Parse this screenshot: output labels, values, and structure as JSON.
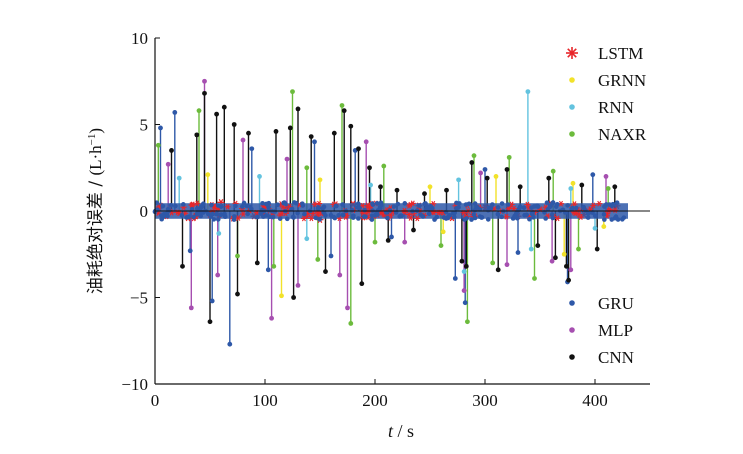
{
  "chart_data": {
    "type": "scatter",
    "title": "",
    "xlabel_italic": "t",
    "xlabel_unit": " / s",
    "ylabel_cn": "油耗绝对误差 / ",
    "ylabel_unit": "(L·h",
    "ylabel_sup": "−1",
    "ylabel_close": ")",
    "xlim": [
      0,
      450
    ],
    "ylim": [
      -10,
      10
    ],
    "x_ticks": [
      0,
      100,
      200,
      300,
      400
    ],
    "y_ticks": [
      10,
      5,
      0,
      -5,
      -10
    ],
    "y_tick_labels": [
      "10",
      "5",
      "0",
      "−5",
      "−10"
    ],
    "grid": false,
    "style": "stem",
    "x_range_of_samples": [
      0,
      430
    ],
    "series": [
      {
        "name": "LSTM",
        "color": "#e8262a",
        "marker": "asterisk",
        "points": [
          [
            5,
            0.3
          ],
          [
            30,
            -0.4
          ],
          [
            60,
            0.5
          ],
          [
            90,
            -0.3
          ],
          [
            120,
            0.2
          ],
          [
            150,
            -0.5
          ],
          [
            180,
            0.4
          ],
          [
            210,
            -0.2
          ],
          [
            240,
            0.3
          ],
          [
            270,
            -0.4
          ],
          [
            300,
            0.2
          ],
          [
            330,
            -0.3
          ],
          [
            360,
            0.4
          ],
          [
            390,
            -0.2
          ],
          [
            420,
            0.3
          ]
        ]
      },
      {
        "name": "GRNN",
        "color": "#f2e22a",
        "marker": "dot",
        "points": [
          [
            48,
            2.1
          ],
          [
            115,
            -4.9
          ],
          [
            150,
            1.8
          ],
          [
            250,
            1.4
          ],
          [
            262,
            -1.2
          ],
          [
            310,
            2.0
          ],
          [
            372,
            -2.5
          ],
          [
            380,
            1.6
          ],
          [
            408,
            -0.9
          ]
        ]
      },
      {
        "name": "RNN",
        "color": "#63c3df",
        "marker": "dot",
        "points": [
          [
            22,
            1.9
          ],
          [
            58,
            -1.3
          ],
          [
            95,
            2.0
          ],
          [
            138,
            -1.6
          ],
          [
            196,
            1.5
          ],
          [
            276,
            1.8
          ],
          [
            281,
            -3.5
          ],
          [
            339,
            6.9
          ],
          [
            342,
            -2.2
          ],
          [
            378,
            1.3
          ],
          [
            400,
            -1.0
          ]
        ]
      },
      {
        "name": "NAXR",
        "color": "#6cbb3c",
        "marker": "dot",
        "points": [
          [
            3,
            3.8
          ],
          [
            40,
            5.8
          ],
          [
            75,
            -2.6
          ],
          [
            108,
            -3.2
          ],
          [
            125,
            6.9
          ],
          [
            138,
            2.5
          ],
          [
            148,
            -2.8
          ],
          [
            170,
            6.1
          ],
          [
            178,
            -6.5
          ],
          [
            200,
            -1.8
          ],
          [
            208,
            2.6
          ],
          [
            260,
            -2.0
          ],
          [
            284,
            -6.4
          ],
          [
            290,
            3.2
          ],
          [
            307,
            -3.0
          ],
          [
            322,
            3.1
          ],
          [
            345,
            -3.9
          ],
          [
            362,
            2.3
          ],
          [
            385,
            -2.2
          ],
          [
            412,
            1.3
          ]
        ]
      },
      {
        "name": "GRU",
        "color": "#2e58a8",
        "marker": "dot",
        "points": [
          [
            5,
            4.8
          ],
          [
            18,
            5.7
          ],
          [
            32,
            -2.3
          ],
          [
            52,
            -5.2
          ],
          [
            68,
            -7.7
          ],
          [
            88,
            3.6
          ],
          [
            103,
            -3.4
          ],
          [
            145,
            4.0
          ],
          [
            160,
            -2.6
          ],
          [
            182,
            3.5
          ],
          [
            215,
            -1.5
          ],
          [
            273,
            -3.9
          ],
          [
            282,
            -5.3
          ],
          [
            300,
            2.4
          ],
          [
            330,
            -2.4
          ],
          [
            375,
            -4.1
          ],
          [
            398,
            2.1
          ]
        ]
      },
      {
        "name": "MLP",
        "color": "#a64fb0",
        "marker": "dot",
        "points": [
          [
            12,
            2.7
          ],
          [
            33,
            -5.6
          ],
          [
            45,
            7.5
          ],
          [
            57,
            -3.7
          ],
          [
            80,
            4.1
          ],
          [
            106,
            -6.2
          ],
          [
            120,
            3.0
          ],
          [
            130,
            -4.3
          ],
          [
            168,
            -3.7
          ],
          [
            175,
            -5.6
          ],
          [
            192,
            4.0
          ],
          [
            227,
            -1.8
          ],
          [
            281,
            -4.6
          ],
          [
            296,
            2.2
          ],
          [
            320,
            -3.1
          ],
          [
            361,
            -2.9
          ],
          [
            378,
            -3.4
          ],
          [
            410,
            2.0
          ]
        ]
      },
      {
        "name": "CNN",
        "color": "#111111",
        "marker": "dot",
        "points": [
          [
            15,
            3.5
          ],
          [
            25,
            -3.2
          ],
          [
            38,
            4.4
          ],
          [
            45,
            6.8
          ],
          [
            50,
            -6.4
          ],
          [
            56,
            5.6
          ],
          [
            63,
            6.0
          ],
          [
            72,
            5.0
          ],
          [
            75,
            -4.8
          ],
          [
            85,
            4.5
          ],
          [
            93,
            -3.0
          ],
          [
            110,
            4.6
          ],
          [
            123,
            4.8
          ],
          [
            126,
            -5.0
          ],
          [
            130,
            5.9
          ],
          [
            142,
            4.3
          ],
          [
            155,
            -3.5
          ],
          [
            163,
            4.5
          ],
          [
            172,
            5.8
          ],
          [
            178,
            4.9
          ],
          [
            185,
            3.6
          ],
          [
            188,
            -4.2
          ],
          [
            195,
            2.5
          ],
          [
            205,
            1.4
          ],
          [
            212,
            -1.7
          ],
          [
            220,
            1.2
          ],
          [
            235,
            -1.1
          ],
          [
            245,
            1.0
          ],
          [
            265,
            1.2
          ],
          [
            279,
            -2.9
          ],
          [
            283,
            -3.2
          ],
          [
            288,
            2.8
          ],
          [
            302,
            1.9
          ],
          [
            312,
            -3.4
          ],
          [
            320,
            2.4
          ],
          [
            332,
            1.4
          ],
          [
            348,
            -2.0
          ],
          [
            358,
            1.9
          ],
          [
            364,
            -2.7
          ],
          [
            374,
            -3.2
          ],
          [
            376,
            -4.0
          ],
          [
            388,
            1.5
          ],
          [
            402,
            -2.2
          ],
          [
            418,
            1.4
          ]
        ]
      }
    ]
  }
}
